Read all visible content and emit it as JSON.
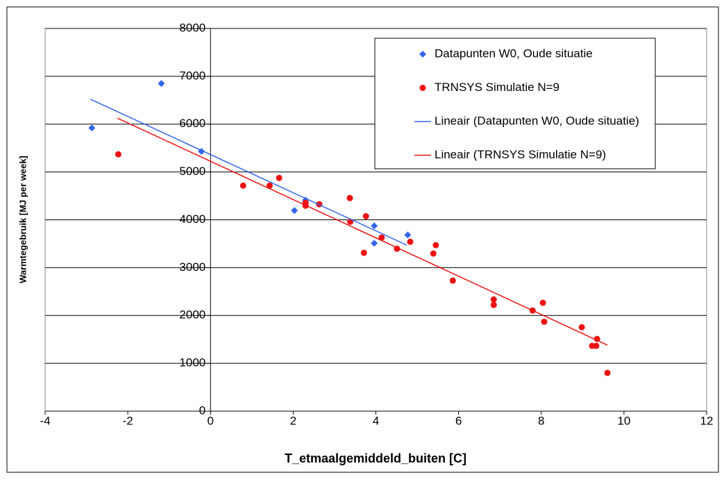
{
  "chart_data": {
    "type": "scatter",
    "xlabel": "T_etmaalgemiddeld_buiten [C]",
    "ylabel": "Warmtegebruik [MJ per week]",
    "xlim": [
      -4,
      12
    ],
    "xticks": [
      -4,
      -2,
      0,
      2,
      4,
      6,
      8,
      10,
      12
    ],
    "ylim": [
      0,
      8000
    ],
    "yticks": [
      0,
      1000,
      2000,
      3000,
      4000,
      5000,
      6000,
      7000,
      8000
    ],
    "grid": true,
    "legend": "upper right",
    "series": [
      {
        "name": "Datapunten W0, Oude situatie",
        "color": "#3366ee",
        "marker": "diamond",
        "x": [
          -2.87,
          -1.19,
          -0.22,
          2.03,
          2.3,
          3.96,
          3.96,
          4.77
        ],
        "values": [
          5920,
          6850,
          5430,
          4195,
          4410,
          3875,
          3510,
          3685
        ]
      },
      {
        "name": "TRNSYS Simulatie N=9",
        "color": "#ee1111",
        "marker": "circle",
        "x": [
          -2.23,
          0.79,
          1.43,
          1.66,
          2.3,
          2.3,
          2.63,
          3.37,
          3.38,
          3.71,
          3.76,
          4.14,
          4.51,
          4.83,
          5.39,
          5.45,
          5.86,
          6.85,
          6.85,
          7.79,
          8.04,
          8.07,
          8.98,
          9.23,
          9.33,
          9.35,
          9.6
        ],
        "values": [
          5370,
          4715,
          4715,
          4875,
          4355,
          4295,
          4325,
          4455,
          3960,
          3310,
          4075,
          3630,
          3395,
          3540,
          3295,
          3470,
          2730,
          2335,
          2220,
          2105,
          2265,
          1870,
          1755,
          1365,
          1365,
          1510,
          800
        ]
      },
      {
        "name": "Lineair (Datapunten W0, Oude situatie)",
        "color": "#3366ee",
        "marker": "line",
        "x": [
          -2.9,
          4.75
        ],
        "values": [
          6520,
          3470
        ]
      },
      {
        "name": "Lineair (TRNSYS Simulatie N=9)",
        "color": "#ee1111",
        "marker": "line",
        "x": [
          -2.25,
          9.6
        ],
        "values": [
          6125,
          1380
        ]
      }
    ]
  }
}
